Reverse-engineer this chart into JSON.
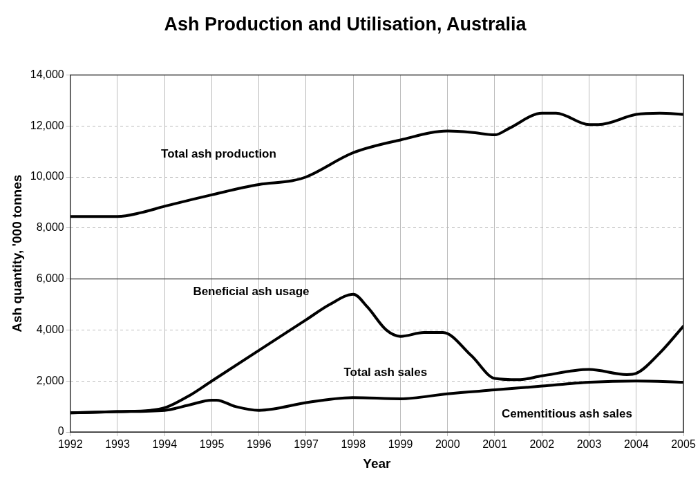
{
  "chart_data": {
    "type": "line",
    "title": "Ash Production and Utilisation, Australia",
    "xlabel": "Year",
    "ylabel": "Ash quantity, '000 tonnes",
    "annotations": [
      "Total ash production",
      "Beneficial ash usage",
      "Total ash sales",
      "Cementitious ash sales"
    ],
    "xlim": [
      1992,
      2005
    ],
    "xticks": [
      1992,
      1993,
      1994,
      1995,
      1996,
      1997,
      1998,
      1999,
      2000,
      2001,
      2002,
      2003,
      2004,
      2005
    ],
    "ylim": [
      0,
      14000
    ],
    "yticks": [
      0,
      {
        "value": 2000,
        "label": "2,000"
      },
      {
        "value": 4000,
        "label": "4,000"
      },
      {
        "value": 6000,
        "label": "6,000"
      },
      {
        "value": 8000,
        "label": "8,000"
      },
      {
        "value": 10000,
        "label": "10,000"
      },
      {
        "value": 12000,
        "label": "12,000"
      },
      {
        "value": 14000,
        "label": "14,000"
      }
    ],
    "grid": true,
    "legend": false,
    "marker": "none",
    "line_style": "solid",
    "ref_lines": [
      {
        "axis": "y",
        "value": 6000,
        "color": "#555555"
      }
    ],
    "series": [
      {
        "color": "#000000",
        "x": [
          1992,
          1993,
          1993.5,
          1994,
          1995,
          1996,
          1996.7,
          1997,
          1998,
          1999,
          2000,
          2000.5,
          2001,
          2001.3,
          2002,
          2002.3,
          2003,
          2003.2,
          2004,
          2004.5,
          2005
        ],
        "values": [
          8450,
          8450,
          8600,
          8850,
          9300,
          9700,
          9850,
          10000,
          10950,
          11450,
          11800,
          11750,
          11650,
          11900,
          12500,
          12500,
          12050,
          12050,
          12450,
          12500,
          12450
        ]
      },
      {
        "color": "#000000",
        "x": [
          1992,
          1993,
          1993.7,
          1994,
          1994.5,
          1995,
          1996,
          1997,
          1997.5,
          1998,
          1998.3,
          1998.7,
          1999,
          1999.5,
          1999.9,
          2000.5,
          2001,
          2001.5,
          2002,
          2003,
          2003.8,
          2004,
          2004.5,
          2005
        ],
        "values": [
          750,
          800,
          850,
          950,
          1400,
          2000,
          3200,
          4400,
          5000,
          5400,
          4900,
          4000,
          3750,
          3900,
          3900,
          3000,
          2100,
          2050,
          2200,
          2450,
          2250,
          2300,
          3100,
          4150
        ]
      },
      {
        "color": "#000000",
        "x": [
          1992,
          1993,
          1994,
          1994.5,
          1995,
          1995.1,
          1995.5,
          1996,
          1996.3,
          1997,
          1998,
          1999,
          2000,
          2001,
          2002,
          2003,
          2004,
          2005
        ],
        "values": [
          750,
          800,
          850,
          1050,
          1250,
          1250,
          1000,
          850,
          900,
          1150,
          1350,
          1300,
          1500,
          1650,
          1800,
          1950,
          2000,
          1950
        ]
      }
    ]
  }
}
